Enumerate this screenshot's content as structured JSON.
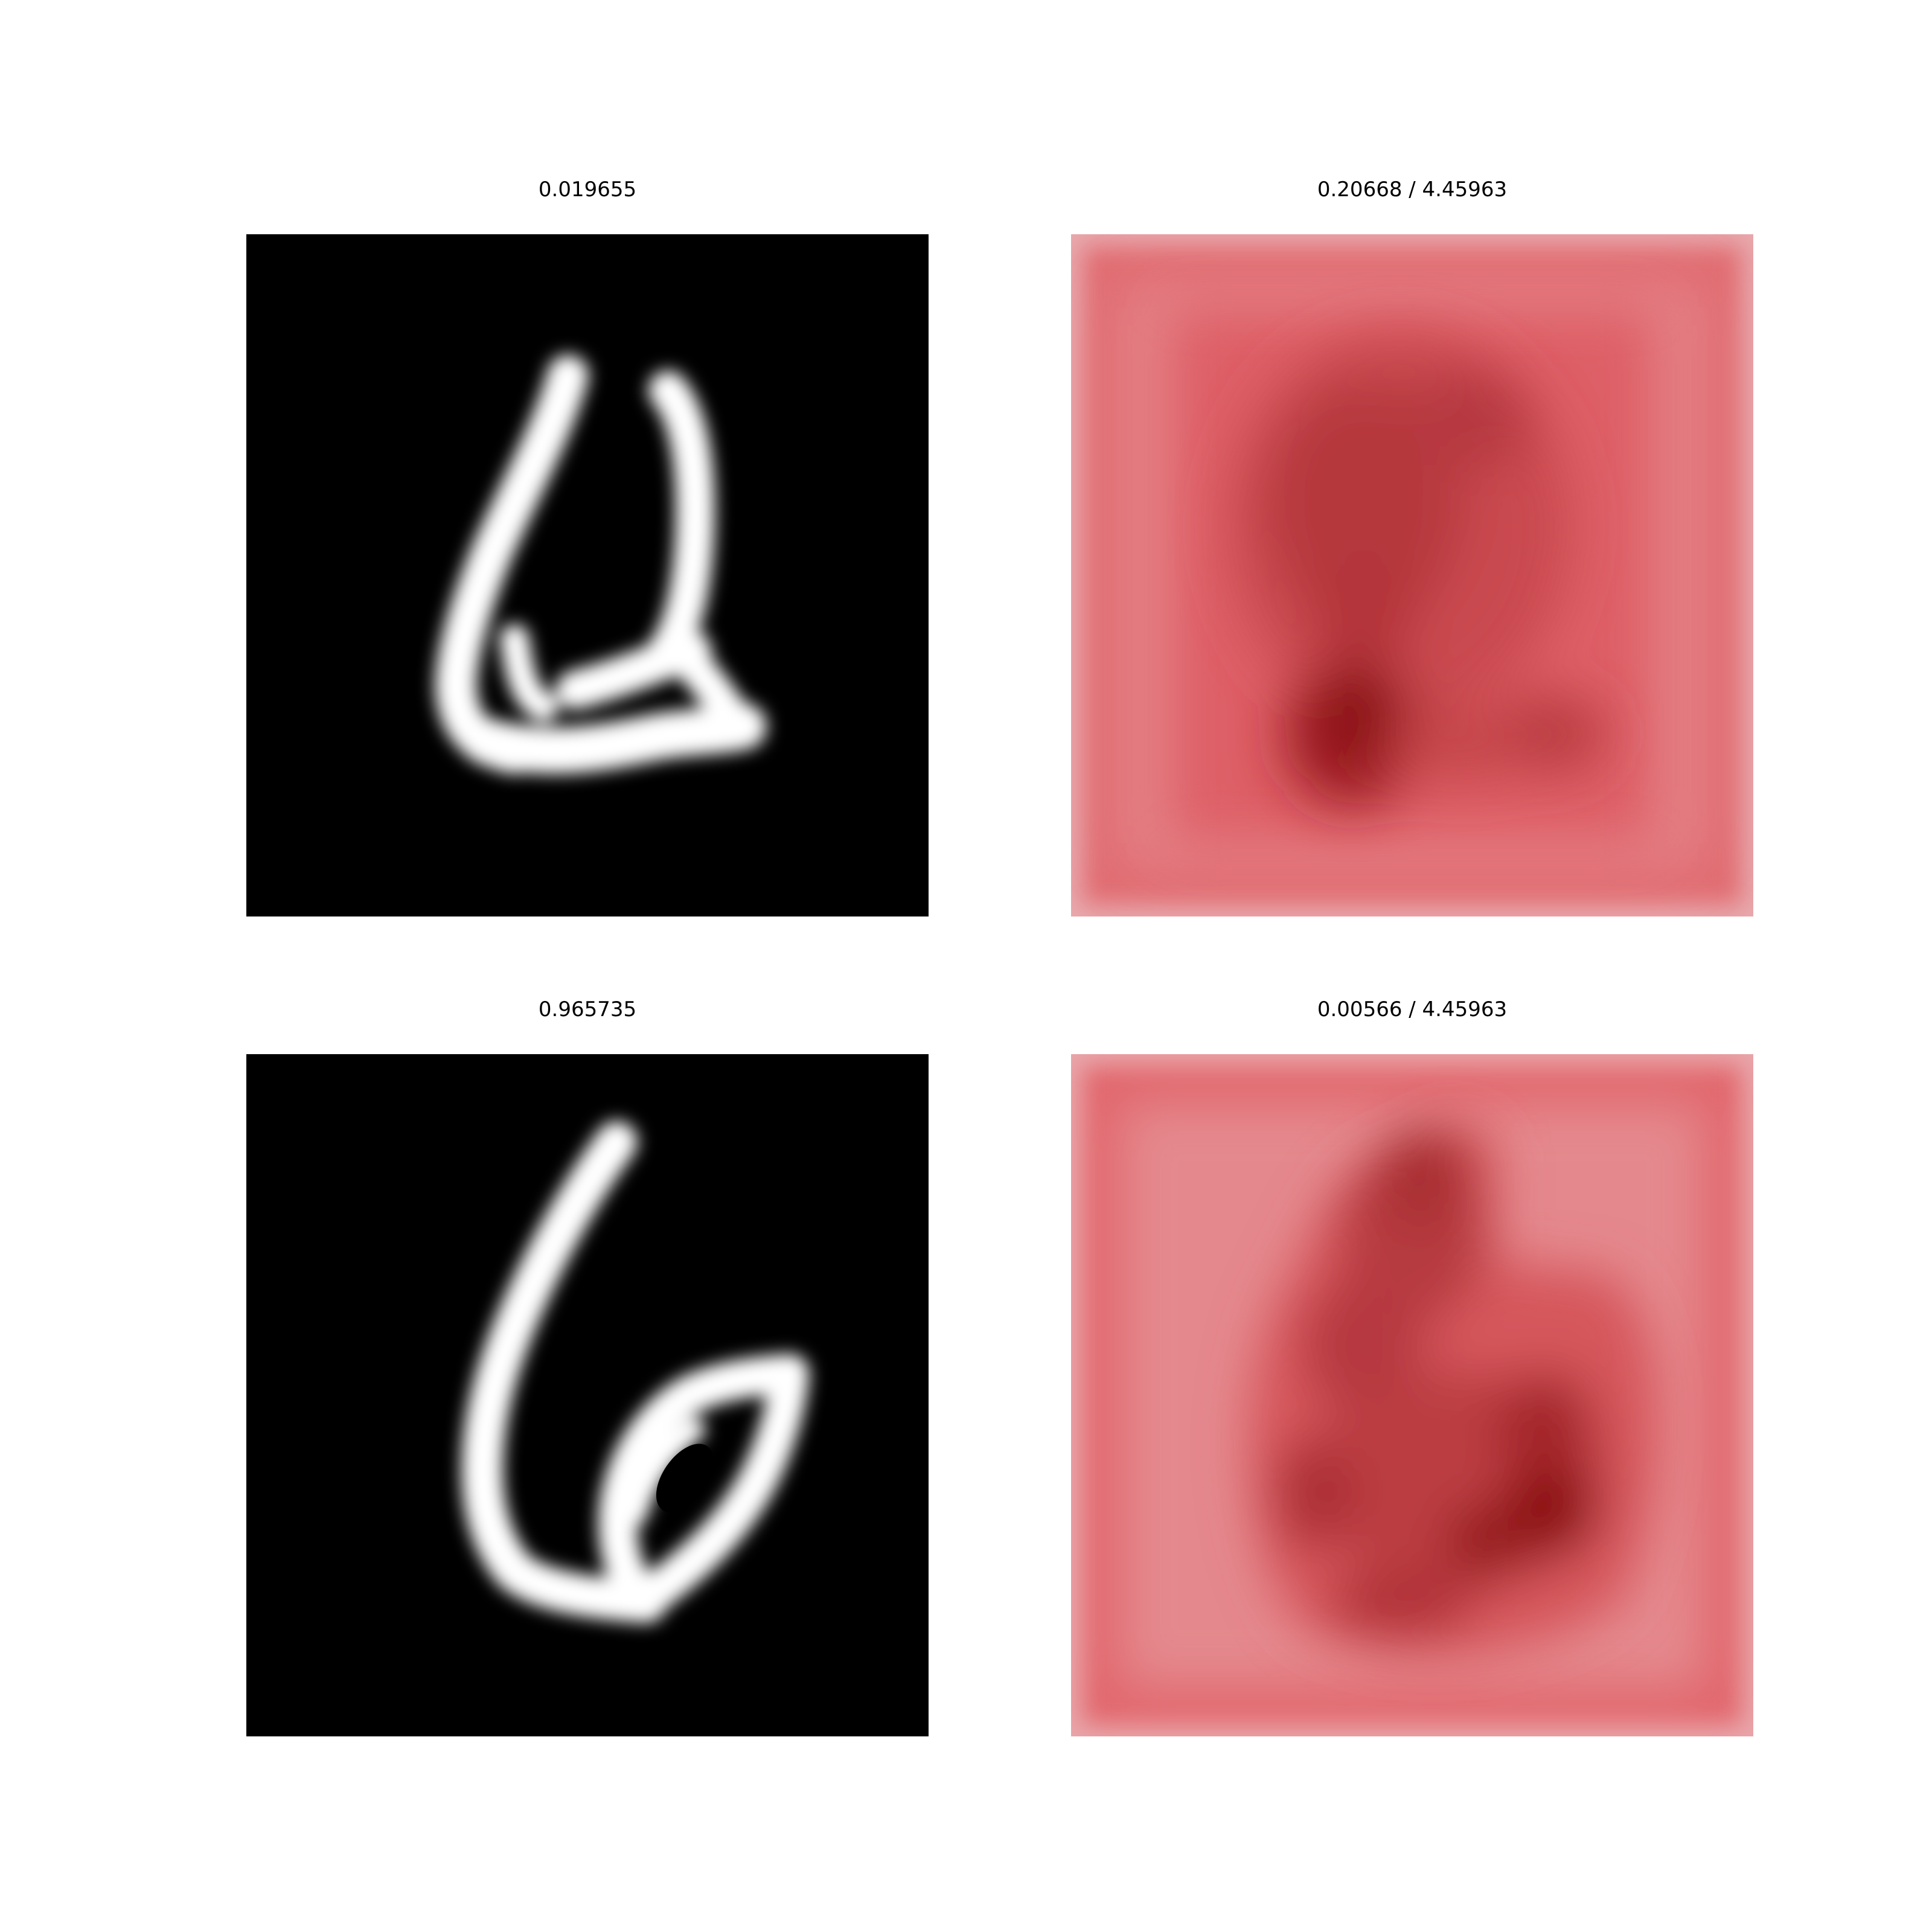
{
  "figure": {
    "panels": [
      {
        "id": "digit-1",
        "title": "0.019655",
        "kind": "digit-image",
        "colormap": "gray"
      },
      {
        "id": "heatmap-1",
        "title": "0.20668 / 4.45963",
        "kind": "saliency-heatmap",
        "colormap": "Reds"
      },
      {
        "id": "digit-2",
        "title": "0.965735",
        "kind": "digit-image",
        "colormap": "gray"
      },
      {
        "id": "heatmap-2",
        "title": "0.00566 / 4.45963",
        "kind": "saliency-heatmap",
        "colormap": "Reds"
      }
    ]
  },
  "colors": {
    "background": "#ffffff",
    "digit_bg": "#000000",
    "digit_stroke": "#ffffff",
    "heat_light": "#e8a3a8",
    "heat_mid": "#e0585f",
    "heat_dark": "#7a0000"
  }
}
